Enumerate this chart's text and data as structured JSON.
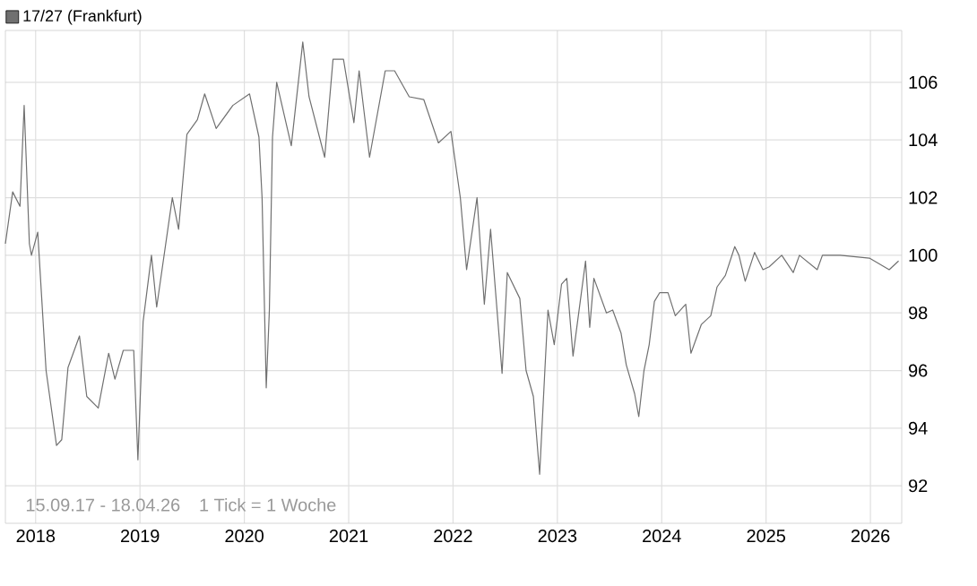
{
  "chart_data": {
    "type": "line",
    "legend": "top left",
    "grid": true,
    "marker": "none",
    "line_style": "solid",
    "xlim": [
      2017.71,
      2026.3
    ],
    "ylim": [
      90.7,
      107.8
    ],
    "xticks": [
      2018,
      2019,
      2020,
      2021,
      2022,
      2023,
      2024,
      2025,
      2026
    ],
    "yticks": [
      92,
      94,
      96,
      98,
      100,
      102,
      104,
      106
    ],
    "annotations": [
      "15.09.17 - 18.04.26",
      "1 Tick = 1 Woche"
    ],
    "series": [
      {
        "name": "17/27 (Frankfurt)",
        "color": "#707070",
        "x": [
          2017.71,
          2017.78,
          2017.85,
          2017.89,
          2017.91,
          2017.94,
          2017.96,
          2018.02,
          2018.1,
          2018.2,
          2018.25,
          2018.31,
          2018.42,
          2018.49,
          2018.6,
          2018.7,
          2018.76,
          2018.84,
          2018.94,
          2018.98,
          2019.03,
          2019.11,
          2019.16,
          2019.31,
          2019.37,
          2019.45,
          2019.55,
          2019.62,
          2019.73,
          2019.89,
          2020.05,
          2020.14,
          2020.17,
          2020.21,
          2020.24,
          2020.27,
          2020.31,
          2020.45,
          2020.56,
          2020.62,
          2020.77,
          2020.85,
          2020.95,
          2021.05,
          2021.1,
          2021.2,
          2021.35,
          2021.44,
          2021.58,
          2021.72,
          2021.86,
          2021.98,
          2022.07,
          2022.13,
          2022.23,
          2022.3,
          2022.36,
          2022.47,
          2022.52,
          2022.64,
          2022.7,
          2022.77,
          2022.83,
          2022.88,
          2022.91,
          2022.97,
          2023.04,
          2023.09,
          2023.15,
          2023.27,
          2023.31,
          2023.35,
          2023.47,
          2023.53,
          2023.61,
          2023.66,
          2023.74,
          2023.78,
          2023.83,
          2023.88,
          2023.93,
          2023.98,
          2024.06,
          2024.13,
          2024.23,
          2024.28,
          2024.38,
          2024.47,
          2024.53,
          2024.61,
          2024.7,
          2024.74,
          2024.8,
          2024.89,
          2024.97,
          2025.03,
          2025.15,
          2025.26,
          2025.32,
          2025.49,
          2025.54,
          2025.71,
          2025.99,
          2026.18,
          2026.27
        ],
        "values": [
          100.4,
          102.2,
          101.7,
          105.2,
          103.3,
          100.4,
          100.0,
          100.8,
          96.0,
          93.4,
          93.6,
          96.1,
          97.2,
          95.1,
          94.7,
          96.6,
          95.7,
          96.7,
          96.7,
          92.9,
          97.7,
          100.0,
          98.2,
          102.0,
          100.9,
          104.2,
          104.7,
          105.6,
          104.4,
          105.2,
          105.6,
          104.1,
          102.0,
          95.4,
          98.1,
          104.1,
          106.0,
          103.8,
          107.4,
          105.5,
          103.4,
          106.8,
          106.8,
          104.6,
          106.4,
          103.4,
          106.4,
          106.4,
          105.5,
          105.4,
          103.9,
          104.3,
          102.0,
          99.5,
          102.0,
          98.3,
          100.9,
          95.9,
          99.4,
          98.5,
          96.0,
          95.1,
          92.4,
          96.0,
          98.1,
          96.9,
          99.0,
          99.2,
          96.5,
          99.8,
          97.5,
          99.2,
          98.0,
          98.1,
          97.3,
          96.2,
          95.2,
          94.4,
          96.0,
          96.9,
          98.4,
          98.7,
          98.7,
          97.9,
          98.3,
          96.6,
          97.6,
          97.9,
          98.9,
          99.3,
          100.3,
          100.0,
          99.1,
          100.1,
          99.5,
          99.6,
          100.0,
          99.4,
          100.0,
          99.5,
          100.0,
          100.0,
          99.9,
          99.5,
          99.8
        ]
      }
    ]
  }
}
